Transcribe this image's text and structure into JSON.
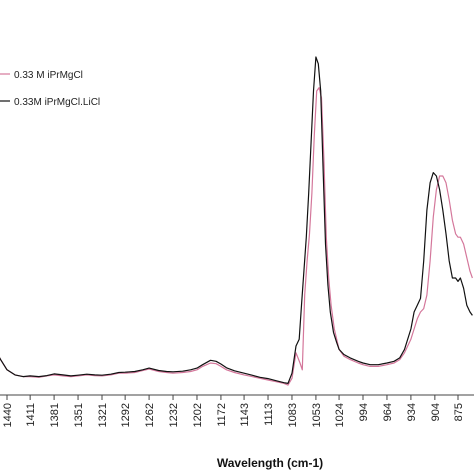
{
  "chart_data": {
    "type": "line",
    "title": "",
    "xlabel": "Wavelength (cm-1)",
    "ylabel": "",
    "x_reversed": true,
    "xlim": [
      1455,
      855
    ],
    "ylim": [
      0,
      1
    ],
    "grid": false,
    "legend_position": "top-left",
    "x_ticks": [
      1440,
      1411,
      1381,
      1351,
      1321,
      1292,
      1262,
      1232,
      1202,
      1172,
      1143,
      1113,
      1083,
      1053,
      1024,
      994,
      964,
      934,
      904,
      875
    ],
    "series": [
      {
        "name": "0.33 M iPrMgCl",
        "color": "#d4779b",
        "x": [
          1455,
          1448,
          1440,
          1430,
          1420,
          1411,
          1400,
          1390,
          1381,
          1370,
          1360,
          1351,
          1340,
          1330,
          1321,
          1310,
          1300,
          1292,
          1280,
          1270,
          1262,
          1250,
          1240,
          1232,
          1220,
          1210,
          1202,
          1195,
          1185,
          1178,
          1172,
          1165,
          1155,
          1143,
          1133,
          1123,
          1113,
          1103,
          1093,
          1088,
          1083,
          1078,
          1073,
          1070,
          1067,
          1064,
          1061,
          1058,
          1055,
          1052,
          1049,
          1046,
          1043,
          1040,
          1037,
          1034,
          1030,
          1026,
          1024,
          1018,
          1010,
          1000,
          994,
          985,
          975,
          964,
          955,
          948,
          942,
          938,
          934,
          930,
          926,
          922,
          918,
          914,
          910,
          906,
          902,
          898,
          894,
          890,
          886,
          882,
          878,
          875,
          872,
          868,
          864,
          860,
          857
        ],
        "y": [
          0.09,
          0.06,
          0.03,
          0.015,
          0.01,
          0.01,
          0.008,
          0.012,
          0.015,
          0.012,
          0.01,
          0.012,
          0.015,
          0.013,
          0.012,
          0.015,
          0.02,
          0.02,
          0.022,
          0.028,
          0.032,
          0.025,
          0.022,
          0.02,
          0.022,
          0.025,
          0.03,
          0.04,
          0.05,
          0.048,
          0.04,
          0.03,
          0.022,
          0.015,
          0.01,
          0.005,
          0.0,
          -0.005,
          -0.01,
          -0.015,
          0.005,
          0.08,
          0.05,
          0.03,
          0.25,
          0.35,
          0.43,
          0.55,
          0.72,
          0.85,
          0.86,
          0.83,
          0.65,
          0.42,
          0.3,
          0.22,
          0.15,
          0.11,
          0.09,
          0.07,
          0.06,
          0.05,
          0.045,
          0.04,
          0.04,
          0.045,
          0.05,
          0.06,
          0.08,
          0.1,
          0.12,
          0.15,
          0.18,
          0.2,
          0.21,
          0.25,
          0.35,
          0.48,
          0.56,
          0.6,
          0.6,
          0.58,
          0.53,
          0.47,
          0.43,
          0.42,
          0.42,
          0.4,
          0.36,
          0.32,
          0.3
        ]
      },
      {
        "name": "0.33M iPrMgCl.LiCl",
        "color": "#111111",
        "x": [
          1455,
          1448,
          1440,
          1430,
          1420,
          1411,
          1400,
          1390,
          1381,
          1370,
          1360,
          1351,
          1340,
          1330,
          1321,
          1310,
          1300,
          1292,
          1280,
          1270,
          1262,
          1250,
          1240,
          1232,
          1220,
          1210,
          1202,
          1195,
          1185,
          1178,
          1172,
          1165,
          1155,
          1143,
          1133,
          1123,
          1113,
          1103,
          1093,
          1088,
          1083,
          1078,
          1074,
          1071,
          1068,
          1065,
          1062,
          1059,
          1056,
          1053,
          1050,
          1047,
          1044,
          1041,
          1038,
          1035,
          1031,
          1027,
          1024,
          1018,
          1010,
          1000,
          994,
          985,
          975,
          964,
          955,
          948,
          942,
          938,
          934,
          930,
          926,
          922,
          918,
          914,
          910,
          906,
          902,
          898,
          894,
          890,
          886,
          882,
          878,
          875,
          872,
          868,
          864,
          860,
          857
        ],
        "y": [
          0.09,
          0.06,
          0.03,
          0.015,
          0.01,
          0.012,
          0.01,
          0.013,
          0.018,
          0.015,
          0.012,
          0.014,
          0.017,
          0.015,
          0.014,
          0.017,
          0.022,
          0.023,
          0.025,
          0.03,
          0.035,
          0.028,
          0.025,
          0.024,
          0.026,
          0.03,
          0.035,
          0.045,
          0.058,
          0.055,
          0.047,
          0.036,
          0.027,
          0.02,
          0.014,
          0.008,
          0.004,
          -0.002,
          -0.008,
          -0.01,
          0.02,
          0.1,
          0.12,
          0.22,
          0.32,
          0.42,
          0.55,
          0.7,
          0.85,
          0.95,
          0.93,
          0.85,
          0.62,
          0.4,
          0.28,
          0.2,
          0.14,
          0.11,
          0.09,
          0.075,
          0.065,
          0.055,
          0.05,
          0.045,
          0.045,
          0.05,
          0.055,
          0.065,
          0.09,
          0.12,
          0.15,
          0.2,
          0.22,
          0.24,
          0.35,
          0.5,
          0.58,
          0.61,
          0.6,
          0.56,
          0.5,
          0.43,
          0.35,
          0.3,
          0.3,
          0.29,
          0.3,
          0.27,
          0.22,
          0.2,
          0.19
        ]
      }
    ]
  }
}
